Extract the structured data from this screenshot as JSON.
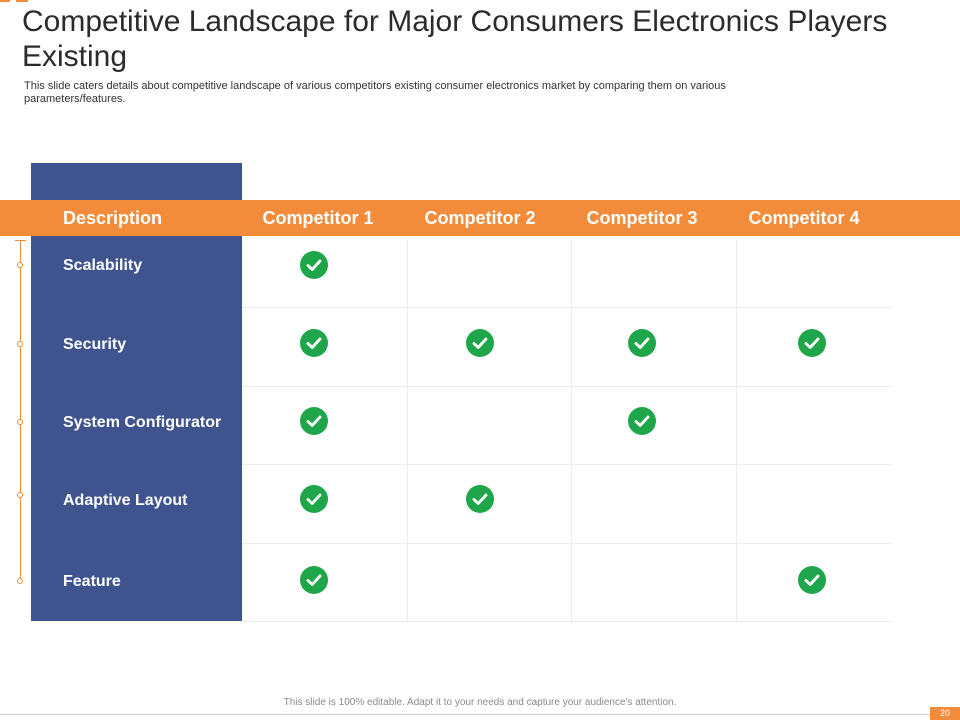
{
  "slide": {
    "title": "Competitive Landscape for Major Consumers Electronics Players Existing",
    "subtitle": "This slide caters details about competitive landscape of various competitors existing consumer electronics market by comparing them on various parameters/features."
  },
  "table": {
    "header_description": "Description",
    "competitors": [
      "Competitor 1",
      "Competitor 2",
      "Competitor 3",
      "Competitor 4"
    ],
    "rows": [
      {
        "label": "Scalability",
        "checks": [
          true,
          false,
          false,
          false
        ]
      },
      {
        "label": "Security",
        "checks": [
          true,
          true,
          true,
          true
        ]
      },
      {
        "label": "System Configurator",
        "checks": [
          true,
          false,
          true,
          false
        ]
      },
      {
        "label": "Adaptive Layout",
        "checks": [
          true,
          true,
          false,
          false
        ]
      },
      {
        "label": "Feature",
        "checks": [
          true,
          false,
          false,
          true
        ]
      }
    ]
  },
  "footer": {
    "note": "This slide is 100% editable. Adapt it to your needs and capture your audience's attention.",
    "page_number": "20"
  },
  "colors": {
    "accent": "#f28c3b",
    "panel": "#3f548f",
    "check": "#1fa64a"
  },
  "icons": {
    "check": "check-circle-icon"
  }
}
